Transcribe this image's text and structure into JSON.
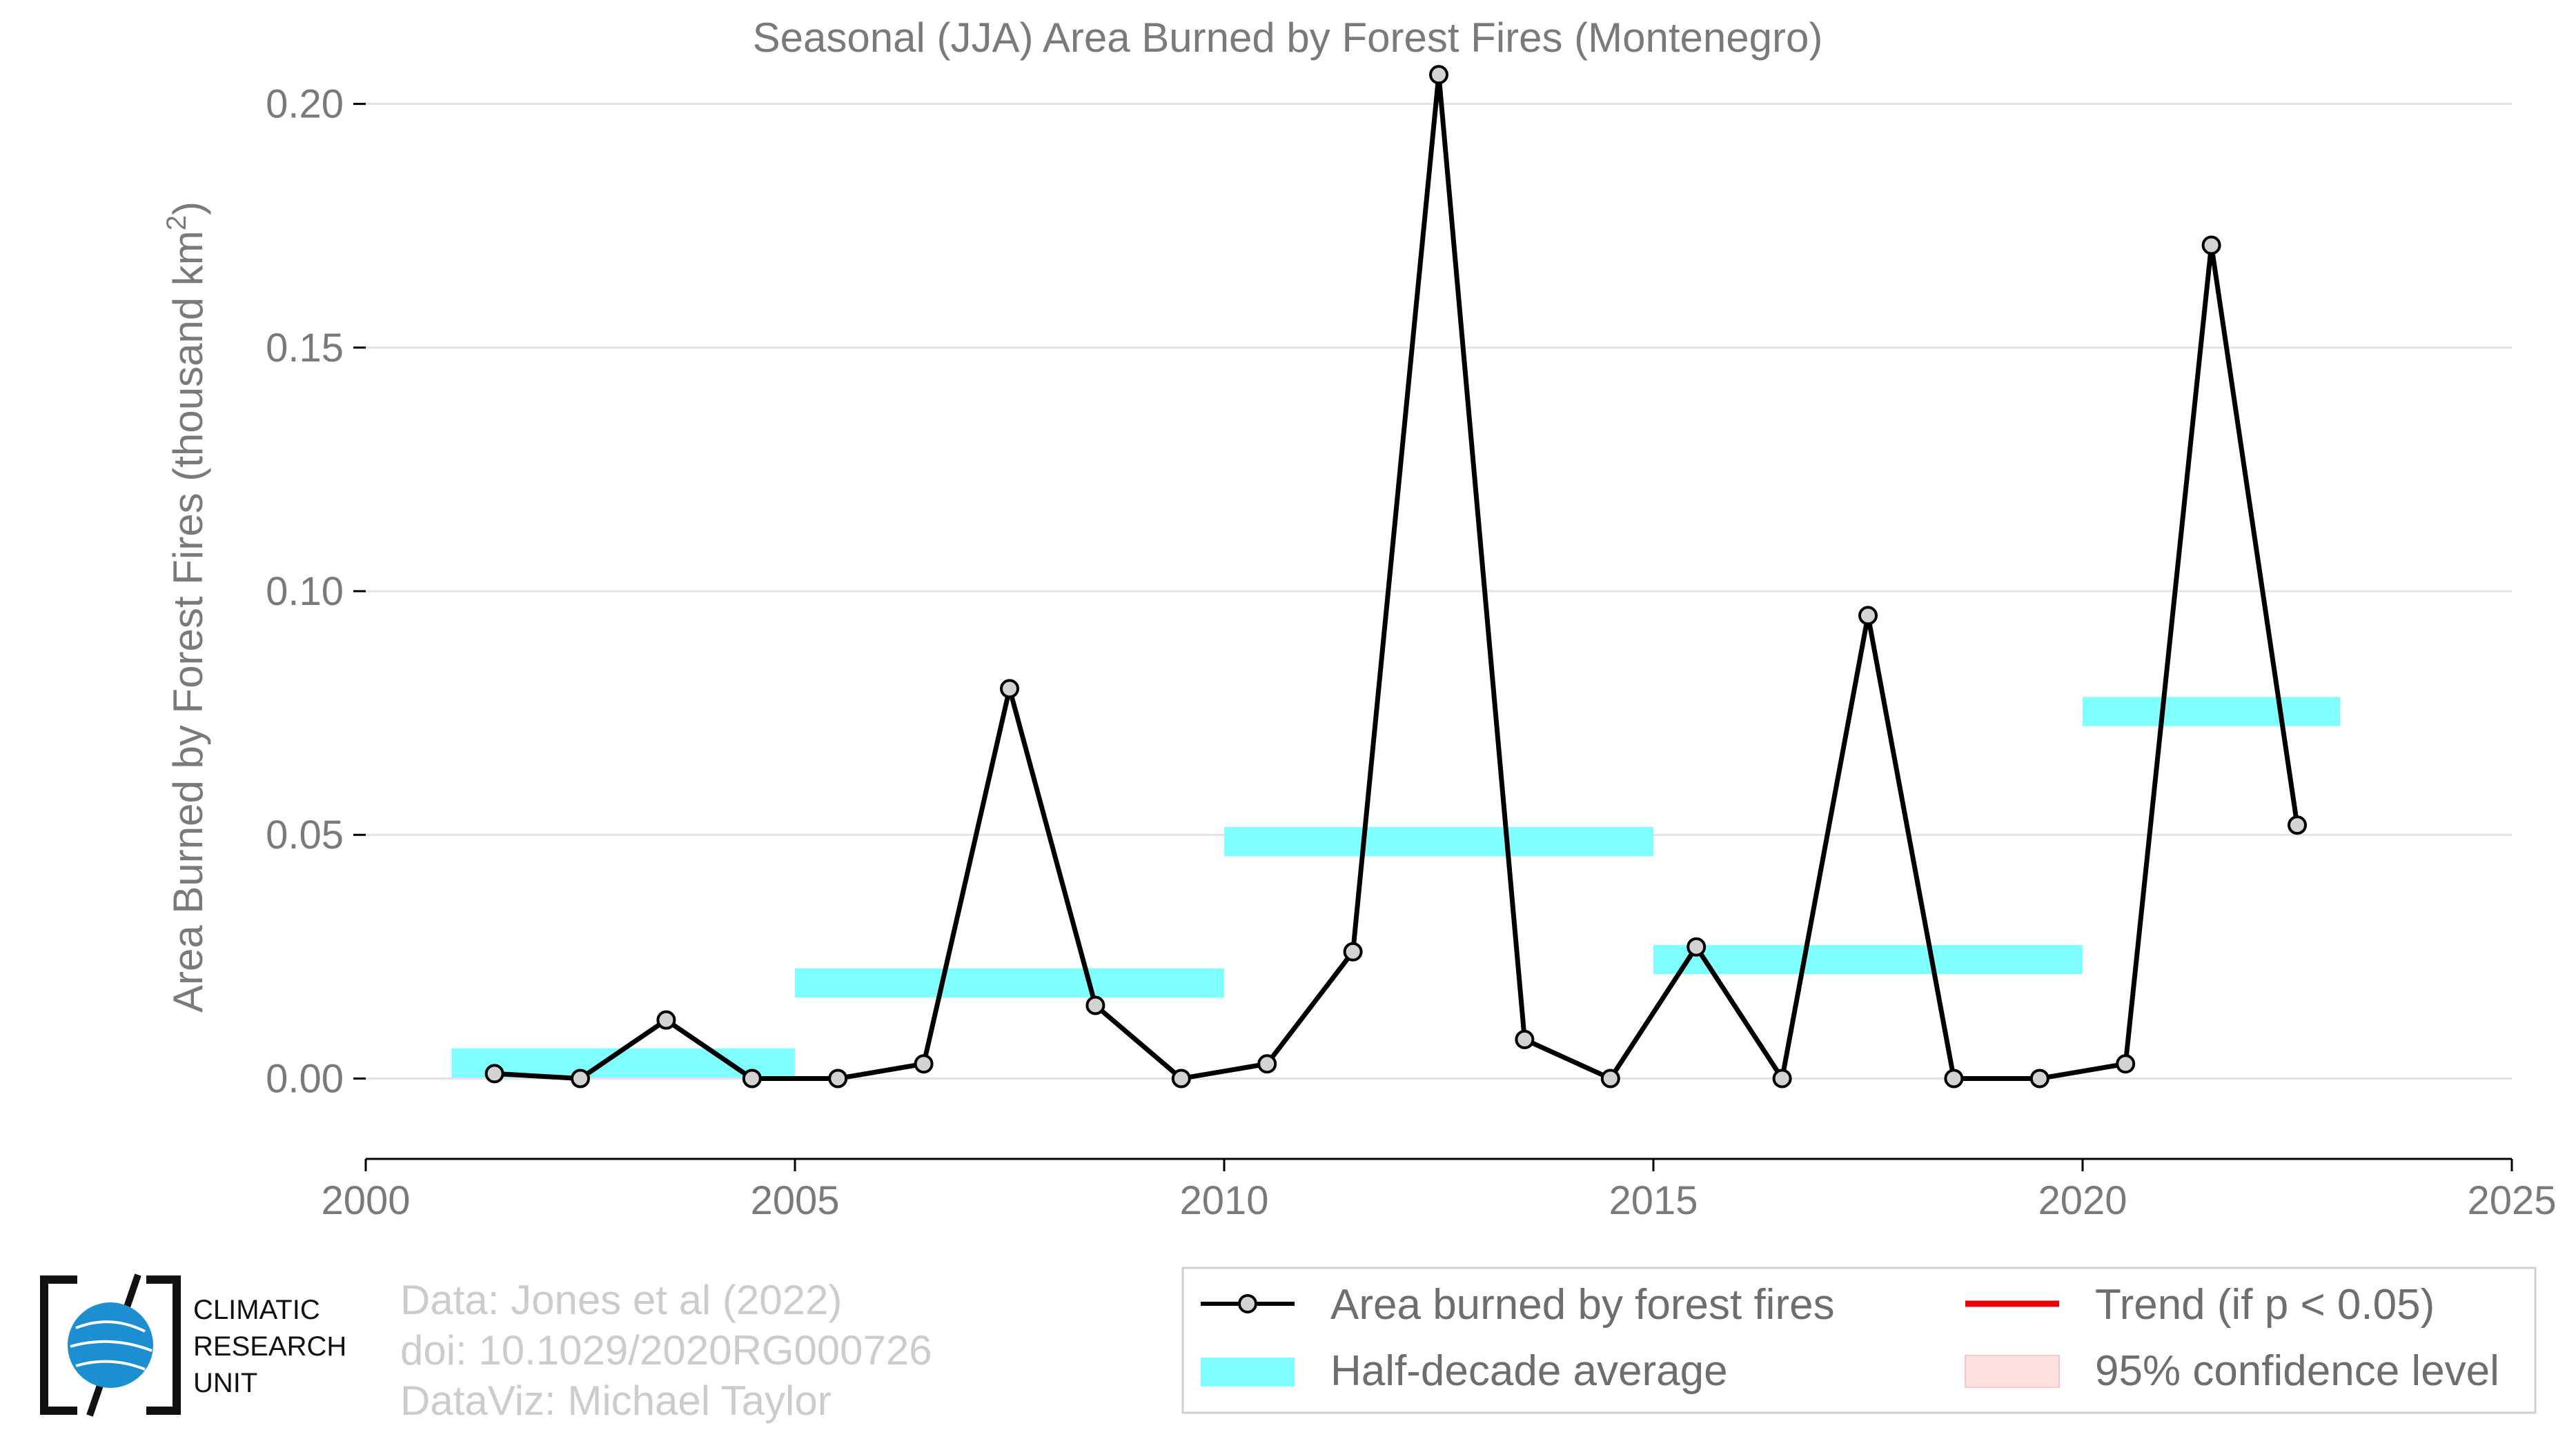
{
  "chart_data": {
    "type": "line",
    "title": "Seasonal (JJA) Area Burned by Forest Fires (Montenegro)",
    "ylabel": "Area Burned by Forest Fires (thousand km",
    "ylabel_sup": "2",
    "ylabel_end": ")",
    "xlim": [
      2000,
      2025
    ],
    "ylim": [
      -0.0165,
      0.21
    ],
    "xticks": [
      2000,
      2005,
      2010,
      2015,
      2020,
      2025
    ],
    "yticks": [
      0.0,
      0.05,
      0.1,
      0.15,
      0.2
    ],
    "ytick_labels": [
      "0.00",
      "0.05",
      "0.10",
      "0.15",
      "0.20"
    ],
    "grid": "horizontal",
    "series": [
      {
        "name": "Area burned by forest fires",
        "color": "#000000",
        "marker_fill": "#d3d3d3",
        "x": [
          2001.5,
          2002.5,
          2003.5,
          2004.5,
          2005.5,
          2006.5,
          2007.5,
          2008.5,
          2009.5,
          2010.5,
          2011.5,
          2012.5,
          2013.5,
          2014.5,
          2015.5,
          2016.5,
          2017.5,
          2018.5,
          2019.5,
          2020.5,
          2021.5,
          2022.5
        ],
        "y": [
          0.001,
          0.0,
          0.012,
          0.0,
          0.0,
          0.003,
          0.08,
          0.015,
          0.0,
          0.003,
          0.026,
          0.206,
          0.008,
          0.0,
          0.027,
          0.0,
          0.095,
          0.0,
          0.0,
          0.003,
          0.171,
          0.052
        ]
      }
    ],
    "half_decade_average": {
      "name": "Half-decade average",
      "color": "#7fffff",
      "segments": [
        {
          "x0": 2001,
          "x1": 2005,
          "y": 0.0032
        },
        {
          "x0": 2005,
          "x1": 2010,
          "y": 0.0196
        },
        {
          "x0": 2010,
          "x1": 2015,
          "y": 0.0486
        },
        {
          "x0": 2015,
          "x1": 2020,
          "y": 0.0244
        },
        {
          "x0": 2020,
          "x1": 2023,
          "y": 0.0753
        }
      ]
    },
    "legend": {
      "placement": "bottom-right",
      "items": [
        {
          "label": "Area burned by forest fires",
          "kind": "line-marker",
          "color": "#000000"
        },
        {
          "label": "Trend (if p < 0.05)",
          "kind": "line",
          "color": "#e8000b"
        },
        {
          "label": "Half-decade average",
          "kind": "band",
          "color": "#7fffff"
        },
        {
          "label": "95% confidence level",
          "kind": "band",
          "color": "#fde0e0"
        }
      ]
    }
  },
  "credits": {
    "line1": "Data: Jones et al (2022)",
    "line2": "doi: 10.1029/2020RG000726",
    "line3": "DataViz: Michael Taylor"
  },
  "logo": {
    "line1": "CLIMATIC",
    "line2": "RESEARCH",
    "line3": "UNIT",
    "globe_color": "#1b8fd2"
  }
}
